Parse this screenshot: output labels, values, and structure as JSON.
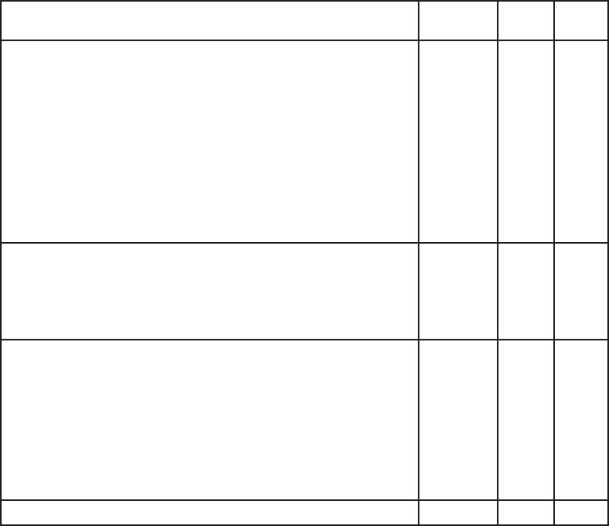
{
  "table": {
    "line_color": "#231f20",
    "rows": [
      [
        "",
        "",
        "",
        ""
      ],
      [
        "",
        "",
        "",
        ""
      ],
      [
        "",
        "",
        "",
        ""
      ],
      [
        "",
        "",
        "",
        ""
      ],
      [
        "",
        "",
        "",
        ""
      ]
    ]
  }
}
